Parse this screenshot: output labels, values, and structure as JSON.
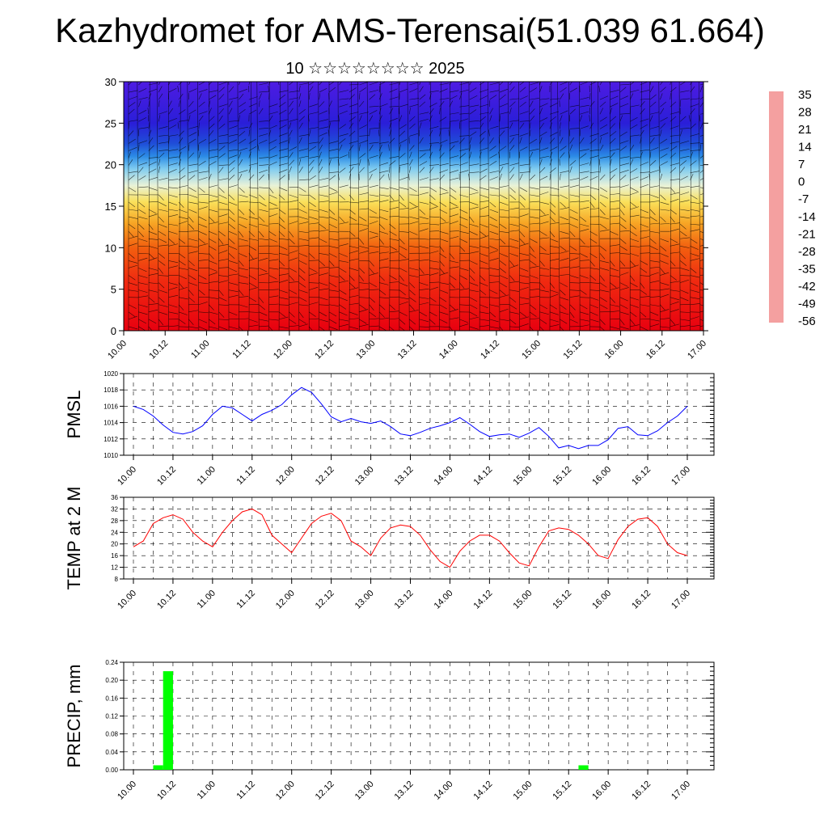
{
  "title": "Kazhydromet for AMS-Terensai(51.039 61.664)",
  "subtitle": "10 ☆☆☆☆☆☆☆☆ 2025",
  "time_ticks": [
    "10.00",
    "10.12",
    "11.00",
    "11.12",
    "12.00",
    "12.12",
    "13.00",
    "13.12",
    "14.00",
    "14.12",
    "15.00",
    "15.12",
    "16.00",
    "16.12",
    "17.00"
  ],
  "chart_data": [
    {
      "type": "heatmap",
      "id": "cross_section",
      "description_of_axes": "time vs level",
      "ylim": [
        0,
        30
      ],
      "yticks": [
        "0",
        "5",
        "10",
        "15",
        "20",
        "25",
        "30"
      ],
      "colorbar": {
        "labels": [
          "35",
          "28",
          "21",
          "14",
          "7",
          "0",
          "-7",
          "-14",
          "-21",
          "-28",
          "-35",
          "-42",
          "-49",
          "-56"
        ],
        "colors": [
          "#f4a0a0",
          "#e01010",
          "#ee2a10",
          "#f06010",
          "#f49020",
          "#f8c030",
          "#fff080",
          "#f0f0c0",
          "#a0e0f8",
          "#30b0f0",
          "#2080e0",
          "#2040d0",
          "#2010e0",
          "#6010e0"
        ]
      },
      "profile": [
        {
          "level": 0,
          "color": "#e80010"
        },
        {
          "level": 6,
          "color": "#f02a10"
        },
        {
          "level": 10,
          "color": "#f25f0f"
        },
        {
          "level": 13,
          "color": "#f7a625"
        },
        {
          "level": 15.5,
          "color": "#fae05a"
        },
        {
          "level": 17.5,
          "color": "#e8f2d8"
        },
        {
          "level": 19.5,
          "color": "#80ccf0"
        },
        {
          "level": 21,
          "color": "#2c8ce6"
        },
        {
          "level": 22.5,
          "color": "#1f4fd8"
        },
        {
          "level": 25,
          "color": "#2a1ed8"
        },
        {
          "level": 30,
          "color": "#4e1ce2"
        }
      ]
    },
    {
      "type": "line",
      "id": "pmsl",
      "ylabel": "PMSL",
      "ylim": [
        1010,
        1020
      ],
      "yticks": [
        "1010",
        "1012",
        "1014",
        "1016",
        "1018",
        "1020"
      ],
      "grid": true,
      "series": [
        {
          "color": "#0000ff",
          "x": [
            0,
            1,
            2,
            3,
            4,
            5,
            6,
            7,
            8,
            9,
            10,
            11,
            12,
            13,
            14,
            15,
            16,
            17,
            18,
            19,
            20,
            21,
            22,
            23,
            24,
            25,
            26,
            27,
            28,
            29,
            30,
            31,
            32,
            33,
            34,
            35,
            36,
            37,
            38,
            39,
            40,
            41,
            42,
            43,
            44,
            45,
            46,
            47,
            48,
            49,
            50,
            51,
            52,
            53,
            54,
            55,
            56
          ],
          "values": [
            1016,
            1015.6,
            1014.8,
            1013.7,
            1012.8,
            1012.6,
            1012.9,
            1013.6,
            1015,
            1016,
            1015.8,
            1015,
            1014.2,
            1015,
            1015.5,
            1016.2,
            1017.4,
            1018.3,
            1017.7,
            1016.3,
            1014.7,
            1014.1,
            1014.5,
            1014.1,
            1013.9,
            1014.2,
            1013.5,
            1012.6,
            1012.4,
            1012.8,
            1013.3,
            1013.6,
            1014,
            1014.6,
            1013.8,
            1012.9,
            1012.3,
            1012.5,
            1012.6,
            1012.2,
            1012.7,
            1013.4,
            1012.3,
            1010.9,
            1011.2,
            1010.8,
            1011.2,
            1011.2,
            1011.9,
            1013.3,
            1013.5,
            1012.5,
            1012.4,
            1013,
            1014,
            1014.8,
            1016
          ]
        }
      ]
    },
    {
      "type": "line",
      "id": "temp",
      "ylabel": "TEMP at 2 M",
      "ylim": [
        8,
        36
      ],
      "yticks": [
        "8",
        "12",
        "16",
        "20",
        "24",
        "28",
        "32",
        "36"
      ],
      "grid": true,
      "series": [
        {
          "color": "#ff0000",
          "x": [
            0,
            1,
            2,
            3,
            4,
            5,
            6,
            7,
            8,
            9,
            10,
            11,
            12,
            13,
            14,
            15,
            16,
            17,
            18,
            19,
            20,
            21,
            22,
            23,
            24,
            25,
            26,
            27,
            28,
            29,
            30,
            31,
            32,
            33,
            34,
            35,
            36,
            37,
            38,
            39,
            40,
            41,
            42,
            43,
            44,
            45,
            46,
            47,
            48,
            49,
            50,
            51,
            52,
            53,
            54,
            55,
            56
          ],
          "values": [
            19,
            21,
            27,
            29,
            30,
            28.5,
            24,
            21,
            19,
            24,
            28,
            31,
            32,
            30,
            23,
            20,
            17,
            22,
            27,
            29.5,
            30.5,
            28,
            21,
            19,
            16,
            22,
            25.5,
            26.5,
            26,
            23,
            18,
            14,
            12,
            17.5,
            21,
            23,
            23,
            21,
            17,
            13.5,
            12.5,
            19,
            24.5,
            25.5,
            25,
            23,
            20,
            16,
            15,
            21.5,
            26,
            28.5,
            29,
            26,
            20,
            17,
            16
          ]
        }
      ]
    },
    {
      "type": "bar",
      "id": "precip",
      "ylabel": "PRECIP, mm",
      "ylim": [
        0,
        0.24
      ],
      "yticks": [
        "0.00",
        "0.04",
        "0.08",
        "0.12",
        "0.16",
        "0.20",
        "0.24"
      ],
      "grid": true,
      "bar_color": "#00ff00",
      "bars": [
        {
          "x": 2.5,
          "value": 0.01
        },
        {
          "x": 3.5,
          "value": 0.22
        },
        {
          "x": 45.5,
          "value": 0.01
        }
      ]
    }
  ]
}
